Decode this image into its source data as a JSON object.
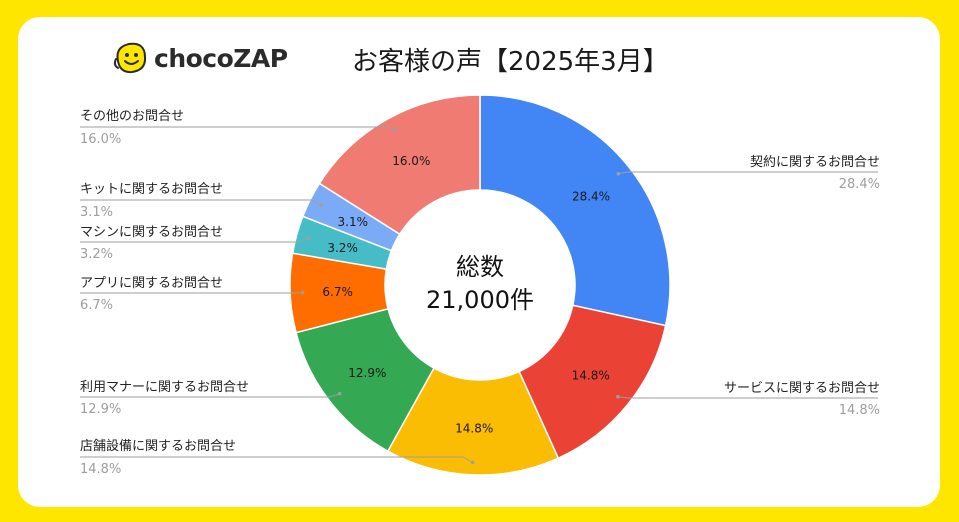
{
  "brand": {
    "logo_text": "chocoZAP",
    "logo_icon": "smiley-hand-icon"
  },
  "title": "お客様の声【2025年3月】",
  "center": {
    "line1": "総数",
    "line2": "21,000件"
  },
  "colors": {
    "page_bg": "#FFE600",
    "card_bg": "#FFFFFF"
  },
  "chart_data": {
    "type": "pie",
    "donut": true,
    "title": "お客様の声【2025年3月】",
    "slices": [
      {
        "label": "契約に関するお問合せ",
        "value": 28.4,
        "display": "28.4%",
        "color": "#4285F4"
      },
      {
        "label": "サービスに関するお問合せ",
        "value": 14.8,
        "display": "14.8%",
        "color": "#EA4335"
      },
      {
        "label": "店舗設備に関するお問合せ",
        "value": 14.8,
        "display": "14.8%",
        "color": "#FBBC04"
      },
      {
        "label": "利用マナーに関するお問合せ",
        "value": 12.9,
        "display": "12.9%",
        "color": "#34A853"
      },
      {
        "label": "アプリに関するお問合せ",
        "value": 6.7,
        "display": "6.7%",
        "color": "#FF6D01"
      },
      {
        "label": "マシンに関するお問合せ",
        "value": 3.2,
        "display": "3.2%",
        "color": "#46BDC6"
      },
      {
        "label": "キットに関するお問合せ",
        "value": 3.1,
        "display": "3.1%",
        "color": "#7BAAF7"
      },
      {
        "label": "その他のお問合せ",
        "value": 16.0,
        "display": "16.0%",
        "color": "#F07B72"
      }
    ],
    "legend": "side-labels"
  }
}
